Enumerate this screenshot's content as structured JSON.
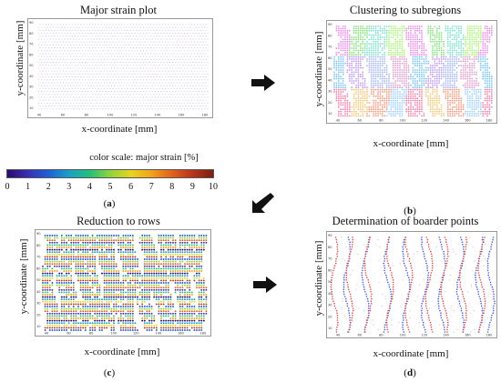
{
  "panels": {
    "a": {
      "title": "Major strain plot",
      "xlabel": "x-coordinate [mm]",
      "ylabel": "y-coordinate [mm]",
      "caption_letter": "a",
      "x_ticks": [
        "40",
        "60",
        "80",
        "100",
        "120",
        "140",
        "160",
        "180"
      ],
      "y_ticks": [
        "90",
        "80",
        "70",
        "60",
        "50",
        "40",
        "30",
        "20",
        "10"
      ]
    },
    "b": {
      "title": "Clustering to subregions",
      "xlabel": "x-coordinate [mm]",
      "ylabel": "y-coordinate [mm]",
      "caption_letter": "b",
      "x_ticks": [
        "40",
        "60",
        "80",
        "100",
        "120",
        "140",
        "160",
        "180"
      ],
      "y_ticks": [
        "90",
        "80",
        "70",
        "60",
        "50",
        "40",
        "30",
        "20",
        "10"
      ]
    },
    "c": {
      "title": "Reduction to rows",
      "xlabel": "x-coordinate [mm]",
      "ylabel": "y-coordinate [mm]",
      "caption_letter": "c",
      "x_ticks": [
        "40",
        "60",
        "80",
        "100",
        "120",
        "140",
        "160",
        "180"
      ],
      "y_ticks": [
        "90",
        "80",
        "70",
        "60",
        "50",
        "40",
        "30",
        "20",
        "10"
      ]
    },
    "d": {
      "title": "Determination of boarder points",
      "xlabel": "x-coordinate [mm]",
      "ylabel": "y-coordinate [mm]",
      "caption_letter": "d",
      "x_ticks": [
        "40",
        "60",
        "80",
        "100",
        "120",
        "140",
        "160",
        "180"
      ],
      "y_ticks": [
        "90",
        "80",
        "70",
        "60",
        "50",
        "40",
        "30",
        "20",
        "10"
      ]
    }
  },
  "color_scale": {
    "title": "color scale: major strain [%]",
    "ticks": [
      "0",
      "1",
      "2",
      "3",
      "4",
      "5",
      "6",
      "7",
      "8",
      "9",
      "10"
    ],
    "colors": [
      "#2a0a6e",
      "#3b2fb0",
      "#1f5fd6",
      "#1aa0c8",
      "#22c07a",
      "#8fd43a",
      "#e6d520",
      "#f2a21c",
      "#e0611a",
      "#b8331a",
      "#7a1e12"
    ]
  },
  "caption_parens": [
    "(",
    ")"
  ],
  "arrows": [
    "right-arrow",
    "down-left-arrow",
    "right-arrow"
  ]
}
